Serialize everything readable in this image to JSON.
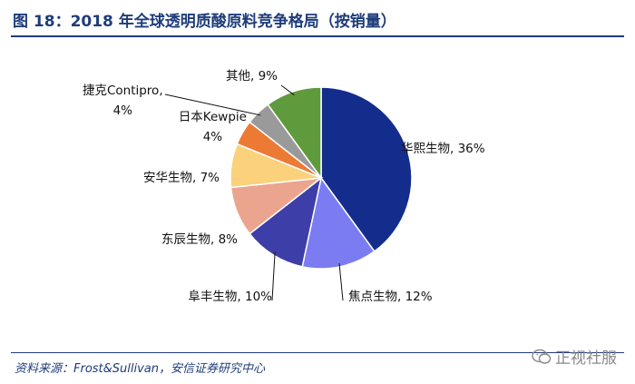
{
  "header": {
    "title": "图 18：2018 年全球透明质酸原料竞争格局（按销量）"
  },
  "footer": {
    "source": "资料来源：Frost&Sullivan，安信证券研究中心",
    "watermark": "正视社服"
  },
  "chart_data": {
    "type": "pie",
    "title": "",
    "unit": "%",
    "legend": "none",
    "slices": [
      {
        "name": "华熙生物",
        "value": 36,
        "color": "#142d8c",
        "label_lines": [
          "华熙生物, 36%"
        ]
      },
      {
        "name": "焦点生物",
        "value": 12,
        "color": "#7b7cf2",
        "label_lines": [
          "焦点生物, 12%"
        ]
      },
      {
        "name": "阜丰生物",
        "value": 10,
        "color": "#3e3ea8",
        "label_lines": [
          "阜丰生物, 10%"
        ]
      },
      {
        "name": "东辰生物",
        "value": 8,
        "color": "#eba58e",
        "label_lines": [
          "东辰生物, 8%"
        ]
      },
      {
        "name": "安华生物",
        "value": 7,
        "color": "#fbd17c",
        "label_lines": [
          "安华生物, 7%"
        ]
      },
      {
        "name": "日本Kewpie",
        "value": 4,
        "color": "#ec7a35",
        "label_lines": [
          "日本Kewpie",
          "4%"
        ]
      },
      {
        "name": "捷克Contipro",
        "value": 4,
        "color": "#9a9a9a",
        "label_lines": [
          "捷克Contipro,",
          "4%"
        ]
      },
      {
        "name": "其他",
        "value": 9,
        "color": "#5f9a3c",
        "label_lines": [
          "其他, 9%"
        ]
      }
    ]
  }
}
